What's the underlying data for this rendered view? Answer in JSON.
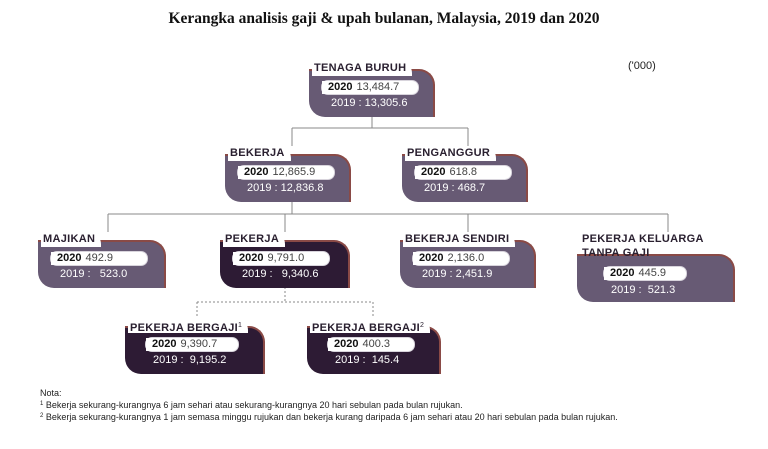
{
  "title": "Kerangka analisis gaji & upah bulanan, Malaysia, 2019 dan 2020",
  "unit": "('000)",
  "year_current": "2020",
  "nodes": {
    "tenaga_buruh": {
      "label": "TENAGA BURUH",
      "value_2020": "13,484.7",
      "prev": "2019 : 13,305.6"
    },
    "bekerja": {
      "label": "BEKERJA",
      "value_2020": "12,865.9",
      "prev": "2019 : 12,836.8"
    },
    "penganggur": {
      "label": "PENGANGGUR",
      "value_2020": "618.8",
      "prev": "2019 : 468.7"
    },
    "majikan": {
      "label": "MAJIKAN",
      "value_2020": "492.9",
      "prev": "2019 :   523.0"
    },
    "pekerja": {
      "label": "PEKERJA",
      "value_2020": "9,791.0",
      "prev": "2019 :   9,340.6"
    },
    "bekerja_sendiri": {
      "label": "BEKERJA SENDIRI",
      "value_2020": "2,136.0",
      "prev": "2019 : 2,451.9"
    },
    "pekerja_keluarga": {
      "label_line1": "PEKERJA KELUARGA",
      "label_line2": "TANPA GAJI",
      "value_2020": "445.9",
      "prev": "2019 :  521.3"
    },
    "pekerja_bergaji_1": {
      "label": "PEKERJA BERGAJI",
      "sup": "1",
      "value_2020": "9,390.7",
      "prev": "2019 :  9,195.2"
    },
    "pekerja_bergaji_2": {
      "label": "PEKERJA BERGAJI",
      "sup": "2",
      "value_2020": "400.3",
      "prev": "2019 :  145.4"
    }
  },
  "nota": {
    "heading": "Nota:",
    "note1_sup": "1",
    "note1": "Bekerja sekurang-kurangnya 6 jam sehari atau sekurang-kurangnya 20 hari sebulan pada bulan rujukan.",
    "note2_sup": "2",
    "note2": "Bekerja sekurang-kurangnya 1 jam semasa minggu rujukan dan bekerja kurang daripada 6 jam sehari atau 20 hari sebulan pada bulan rujukan."
  }
}
